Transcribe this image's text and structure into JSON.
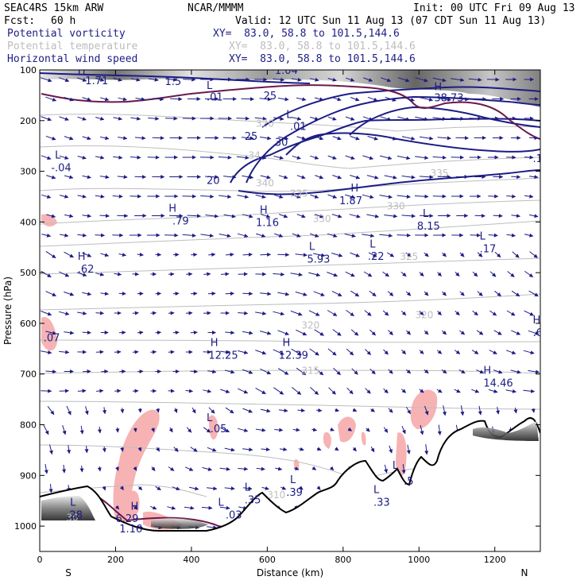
{
  "header": {
    "model": "SEAC4RS 15km ARW",
    "org": "NCAR/MMMM",
    "init": "Init: 00 UTC Fri 09 Aug 13",
    "fcst_label": "Fcst:",
    "fcst_value": "60 h",
    "valid": "Valid: 12 UTC Sun 11 Aug 13 (07 CDT Sun 11 Aug 13)",
    "fields": [
      {
        "name": "Potential vorticity",
        "xy": "XY=  83.0, 58.8 to 101.5,144.6",
        "color": "#1c1c86"
      },
      {
        "name": "Potential temperature",
        "xy": "XY=  83.0, 58.8 to 101.5,144.6",
        "color": "#bdbdbd"
      },
      {
        "name": "Horizontal wind speed",
        "xy": "XY=  83.0, 58.8 to 101.5,144.6",
        "color": "#1c1c86"
      }
    ]
  },
  "chart_data": {
    "type": "contour",
    "xlabel": "Distance (km)",
    "ylabel": "Pressure (hPa)",
    "xlim": [
      0,
      1320
    ],
    "ylim": [
      1050,
      100
    ],
    "x_ticks": [
      "0",
      "200",
      "400",
      "600",
      "800",
      "1000",
      "1200"
    ],
    "y_ticks": [
      "100",
      "200",
      "300",
      "400",
      "500",
      "600",
      "700",
      "800",
      "900",
      "1000"
    ],
    "x_tick_values": [
      0,
      200,
      400,
      600,
      800,
      1000,
      1200
    ],
    "y_tick_values": [
      100,
      200,
      300,
      400,
      500,
      600,
      700,
      800,
      900,
      1000
    ],
    "end_labels": {
      "left": "S",
      "right": "N"
    },
    "pv_labels": [
      {
        "x": 100,
        "p": 108,
        "text": "H"
      },
      {
        "x": 120,
        "p": 128,
        "text": "1.71"
      },
      {
        "x": 330,
        "p": 130,
        "text": "1.5"
      },
      {
        "x": 440,
        "p": 138,
        "text": "L"
      },
      {
        "x": 440,
        "p": 160,
        "text": ".01"
      },
      {
        "x": 620,
        "p": 108,
        "text": "1.04"
      },
      {
        "x": 650,
        "p": 195,
        "text": "L"
      },
      {
        "x": 660,
        "p": 218,
        "text": ".01"
      },
      {
        "x": 1040,
        "p": 140,
        "text": "H"
      },
      {
        "x": 1040,
        "p": 162,
        "text": "38.73"
      },
      {
        "x": 40,
        "p": 275,
        "text": "L"
      },
      {
        "x": 30,
        "p": 300,
        "text": "-.04"
      },
      {
        "x": 1300,
        "p": 282,
        "text": ".19"
      },
      {
        "x": 340,
        "p": 380,
        "text": "H"
      },
      {
        "x": 350,
        "p": 405,
        "text": ".79"
      },
      {
        "x": 580,
        "p": 383,
        "text": "H"
      },
      {
        "x": 570,
        "p": 408,
        "text": "1.16"
      },
      {
        "x": 820,
        "p": 340,
        "text": "H"
      },
      {
        "x": 790,
        "p": 365,
        "text": "1.87"
      },
      {
        "x": 1010,
        "p": 390,
        "text": "L"
      },
      {
        "x": 995,
        "p": 415,
        "text": "8.15"
      },
      {
        "x": 870,
        "p": 450,
        "text": "L"
      },
      {
        "x": 865,
        "p": 475,
        "text": ".22"
      },
      {
        "x": 1160,
        "p": 435,
        "text": "L"
      },
      {
        "x": 1160,
        "p": 460,
        "text": ".17"
      },
      {
        "x": 710,
        "p": 455,
        "text": "L"
      },
      {
        "x": 705,
        "p": 480,
        "text": "5.93"
      },
      {
        "x": 100,
        "p": 475,
        "text": "H"
      },
      {
        "x": 100,
        "p": 500,
        "text": ".62"
      },
      {
        "x": 1300,
        "p": 600,
        "text": "H"
      },
      {
        "x": 1300,
        "p": 625,
        "text": ".62"
      },
      {
        "x": 10,
        "p": 635,
        "text": ".07"
      },
      {
        "x": 450,
        "p": 645,
        "text": "H"
      },
      {
        "x": 445,
        "p": 670,
        "text": "12.25"
      },
      {
        "x": 640,
        "p": 645,
        "text": "H"
      },
      {
        "x": 630,
        "p": 670,
        "text": "12.39"
      },
      {
        "x": 1170,
        "p": 700,
        "text": "H"
      },
      {
        "x": 1170,
        "p": 725,
        "text": "14.46"
      },
      {
        "x": 440,
        "p": 793,
        "text": "L"
      },
      {
        "x": 450,
        "p": 815,
        "text": ".05"
      },
      {
        "x": 930,
        "p": 887,
        "text": "L"
      },
      {
        "x": 960,
        "p": 918,
        "text": ".5"
      },
      {
        "x": 660,
        "p": 915,
        "text": "L"
      },
      {
        "x": 650,
        "p": 940,
        "text": ".39"
      },
      {
        "x": 540,
        "p": 930,
        "text": "L"
      },
      {
        "x": 540,
        "p": 955,
        "text": ".35"
      },
      {
        "x": 880,
        "p": 935,
        "text": "L"
      },
      {
        "x": 880,
        "p": 960,
        "text": ".33"
      },
      {
        "x": 80,
        "p": 960,
        "text": "L"
      },
      {
        "x": 70,
        "p": 985,
        "text": ".28"
      },
      {
        "x": 470,
        "p": 960,
        "text": "L"
      },
      {
        "x": 490,
        "p": 985,
        "text": ".03"
      },
      {
        "x": 240,
        "p": 968,
        "text": "H"
      },
      {
        "x": 200,
        "p": 992,
        "text": "6.29"
      },
      {
        "x": 210,
        "p": 1012,
        "text": "1.16"
      }
    ],
    "theta_labels": [
      {
        "x": 570,
        "p": 212,
        "text": "320"
      },
      {
        "x": 550,
        "p": 275,
        "text": "34"
      },
      {
        "x": 570,
        "p": 330,
        "text": "340"
      },
      {
        "x": 660,
        "p": 350,
        "text": "335"
      },
      {
        "x": 720,
        "p": 400,
        "text": "330"
      },
      {
        "x": 915,
        "p": 375,
        "text": "330"
      },
      {
        "x": 950,
        "p": 475,
        "text": "325"
      },
      {
        "x": 1030,
        "p": 310,
        "text": "335"
      },
      {
        "x": 990,
        "p": 590,
        "text": "320"
      },
      {
        "x": 690,
        "p": 610,
        "text": "320"
      },
      {
        "x": 690,
        "p": 700,
        "text": "315"
      },
      {
        "x": 600,
        "p": 945,
        "text": "310"
      },
      {
        "x": 70,
        "p": 990,
        "text": "30"
      }
    ],
    "wspd_labels": [
      {
        "x": 590,
        "p": 158,
        "text": "25"
      },
      {
        "x": 540,
        "p": 238,
        "text": "25"
      },
      {
        "x": 620,
        "p": 250,
        "text": "30"
      },
      {
        "x": 440,
        "p": 325,
        "text": "20"
      }
    ]
  }
}
